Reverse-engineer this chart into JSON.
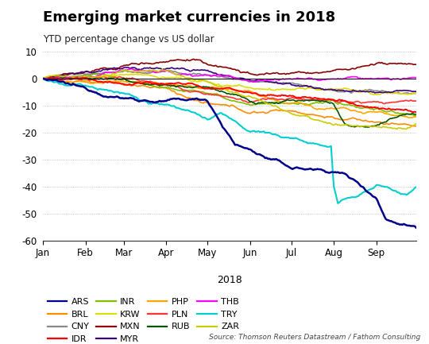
{
  "title": "Emerging market currencies in 2018",
  "subtitle": "YTD percentage change vs US dollar",
  "xlabel": "2018",
  "source": "Source: Thomson Reuters Datastream / Fathom Consulting",
  "ylim": [
    -60,
    10
  ],
  "yticks": [
    -60,
    -50,
    -40,
    -30,
    -20,
    -10,
    0,
    10
  ],
  "xtick_labels": [
    "Jan",
    "Feb",
    "Mar",
    "Apr",
    "May",
    "Jun",
    "Jul",
    "Aug",
    "Sep"
  ],
  "month_days": [
    0,
    31,
    59,
    90,
    120,
    151,
    181,
    212,
    243,
    273
  ],
  "n_days": 273,
  "currencies": {
    "ARS": {
      "color": "#00008B",
      "lw": 1.8,
      "zorder": 10,
      "key_x": [
        0,
        31,
        59,
        90,
        120,
        140,
        151,
        181,
        212,
        220,
        243,
        250,
        260,
        273
      ],
      "key_y": [
        0,
        -5,
        -7,
        -8,
        -8,
        -24,
        -26,
        -33,
        -34,
        -35,
        -43,
        -51,
        -52,
        -53
      ]
    },
    "BRL": {
      "color": "#FF8C00",
      "lw": 1.2,
      "zorder": 5,
      "key_x": [
        0,
        31,
        59,
        90,
        120,
        151,
        181,
        212,
        243,
        273
      ],
      "key_y": [
        0,
        0,
        -2,
        -4,
        -10,
        -14,
        -13,
        -15,
        -17,
        -18
      ]
    },
    "CNY": {
      "color": "#888888",
      "lw": 1.2,
      "zorder": 5,
      "key_x": [
        0,
        31,
        59,
        90,
        120,
        151,
        181,
        212,
        243,
        273
      ],
      "key_y": [
        0,
        1,
        2,
        2,
        1,
        -1,
        -2,
        -5,
        -6,
        -7
      ]
    },
    "IDR": {
      "color": "#FF0000",
      "lw": 1.4,
      "zorder": 6,
      "key_x": [
        0,
        31,
        59,
        90,
        120,
        151,
        181,
        212,
        243,
        273
      ],
      "key_y": [
        0,
        -1,
        -2,
        -2,
        -4,
        -5,
        -6,
        -8,
        -9,
        -10
      ]
    },
    "INR": {
      "color": "#7FBF00",
      "lw": 1.2,
      "zorder": 5,
      "key_x": [
        0,
        31,
        59,
        90,
        120,
        151,
        181,
        212,
        243,
        273
      ],
      "key_y": [
        0,
        0,
        -1,
        -2,
        -3,
        -6,
        -7,
        -9,
        -11,
        -13
      ]
    },
    "KRW": {
      "color": "#DDDD00",
      "lw": 1.2,
      "zorder": 5,
      "key_x": [
        0,
        31,
        59,
        90,
        120,
        151,
        181,
        212,
        243,
        273
      ],
      "key_y": [
        0,
        1,
        2,
        1,
        -1,
        -3,
        -4,
        -5,
        -7,
        -8
      ]
    },
    "MXN": {
      "color": "#8B0000",
      "lw": 1.2,
      "zorder": 5,
      "key_x": [
        0,
        31,
        59,
        90,
        110,
        120,
        151,
        181,
        212,
        243,
        273
      ],
      "key_y": [
        0,
        2,
        4,
        6,
        7,
        5,
        2,
        1,
        2,
        4,
        3
      ]
    },
    "MYR": {
      "color": "#3A007F",
      "lw": 1.2,
      "zorder": 5,
      "key_x": [
        0,
        31,
        59,
        90,
        120,
        151,
        181,
        212,
        243,
        273
      ],
      "key_y": [
        0,
        2,
        3,
        3,
        2,
        0,
        -1,
        -2,
        -3,
        -2
      ]
    },
    "PHP": {
      "color": "#FFA500",
      "lw": 1.2,
      "zorder": 5,
      "key_x": [
        0,
        31,
        59,
        90,
        120,
        151,
        181,
        212,
        243,
        273
      ],
      "key_y": [
        0,
        -2,
        -3,
        -4,
        -5,
        -7,
        -9,
        -12,
        -15,
        -17
      ]
    },
    "PLN": {
      "color": "#FF3333",
      "lw": 1.2,
      "zorder": 5,
      "key_x": [
        0,
        31,
        59,
        90,
        120,
        151,
        181,
        212,
        243,
        273
      ],
      "key_y": [
        0,
        1,
        0,
        -2,
        -4,
        -5,
        -6,
        -7,
        -8,
        -9
      ]
    },
    "RUB": {
      "color": "#005500",
      "lw": 1.2,
      "zorder": 5,
      "key_x": [
        0,
        31,
        59,
        90,
        120,
        151,
        181,
        212,
        220,
        243,
        265,
        273
      ],
      "key_y": [
        0,
        0,
        -1,
        -2,
        -4,
        -9,
        -9,
        -9,
        -17,
        -18,
        -14,
        -15
      ]
    },
    "THB": {
      "color": "#FF00FF",
      "lw": 1.2,
      "zorder": 5,
      "key_x": [
        0,
        31,
        59,
        90,
        120,
        151,
        181,
        212,
        243,
        273
      ],
      "key_y": [
        0,
        0,
        1,
        2,
        1,
        -1,
        -2,
        -3,
        -3,
        -3
      ]
    },
    "TRY": {
      "color": "#00CED1",
      "lw": 1.5,
      "zorder": 7,
      "key_x": [
        0,
        31,
        59,
        90,
        110,
        120,
        130,
        151,
        181,
        210,
        212,
        215,
        230,
        243,
        255,
        265,
        273
      ],
      "key_y": [
        0,
        -3,
        -5,
        -9,
        -11,
        -14,
        -11,
        -18,
        -21,
        -23,
        -38,
        -44,
        -41,
        -38,
        -40,
        -41,
        -38
      ]
    },
    "ZAR": {
      "color": "#CCCC00",
      "lw": 1.2,
      "zorder": 5,
      "key_x": [
        0,
        31,
        59,
        90,
        120,
        151,
        181,
        210,
        212,
        243,
        265,
        273
      ],
      "key_y": [
        0,
        1,
        3,
        4,
        0,
        -6,
        -11,
        -15,
        -16,
        -16,
        -16,
        -14
      ]
    }
  },
  "legend_order": [
    [
      "ARS",
      "BRL",
      "CNY",
      "IDR"
    ],
    [
      "INR",
      "KRW",
      "MXN",
      "MYR"
    ],
    [
      "PHP",
      "PLN",
      "RUB",
      "THB"
    ],
    [
      "TRY",
      "ZAR",
      null,
      null
    ]
  ]
}
